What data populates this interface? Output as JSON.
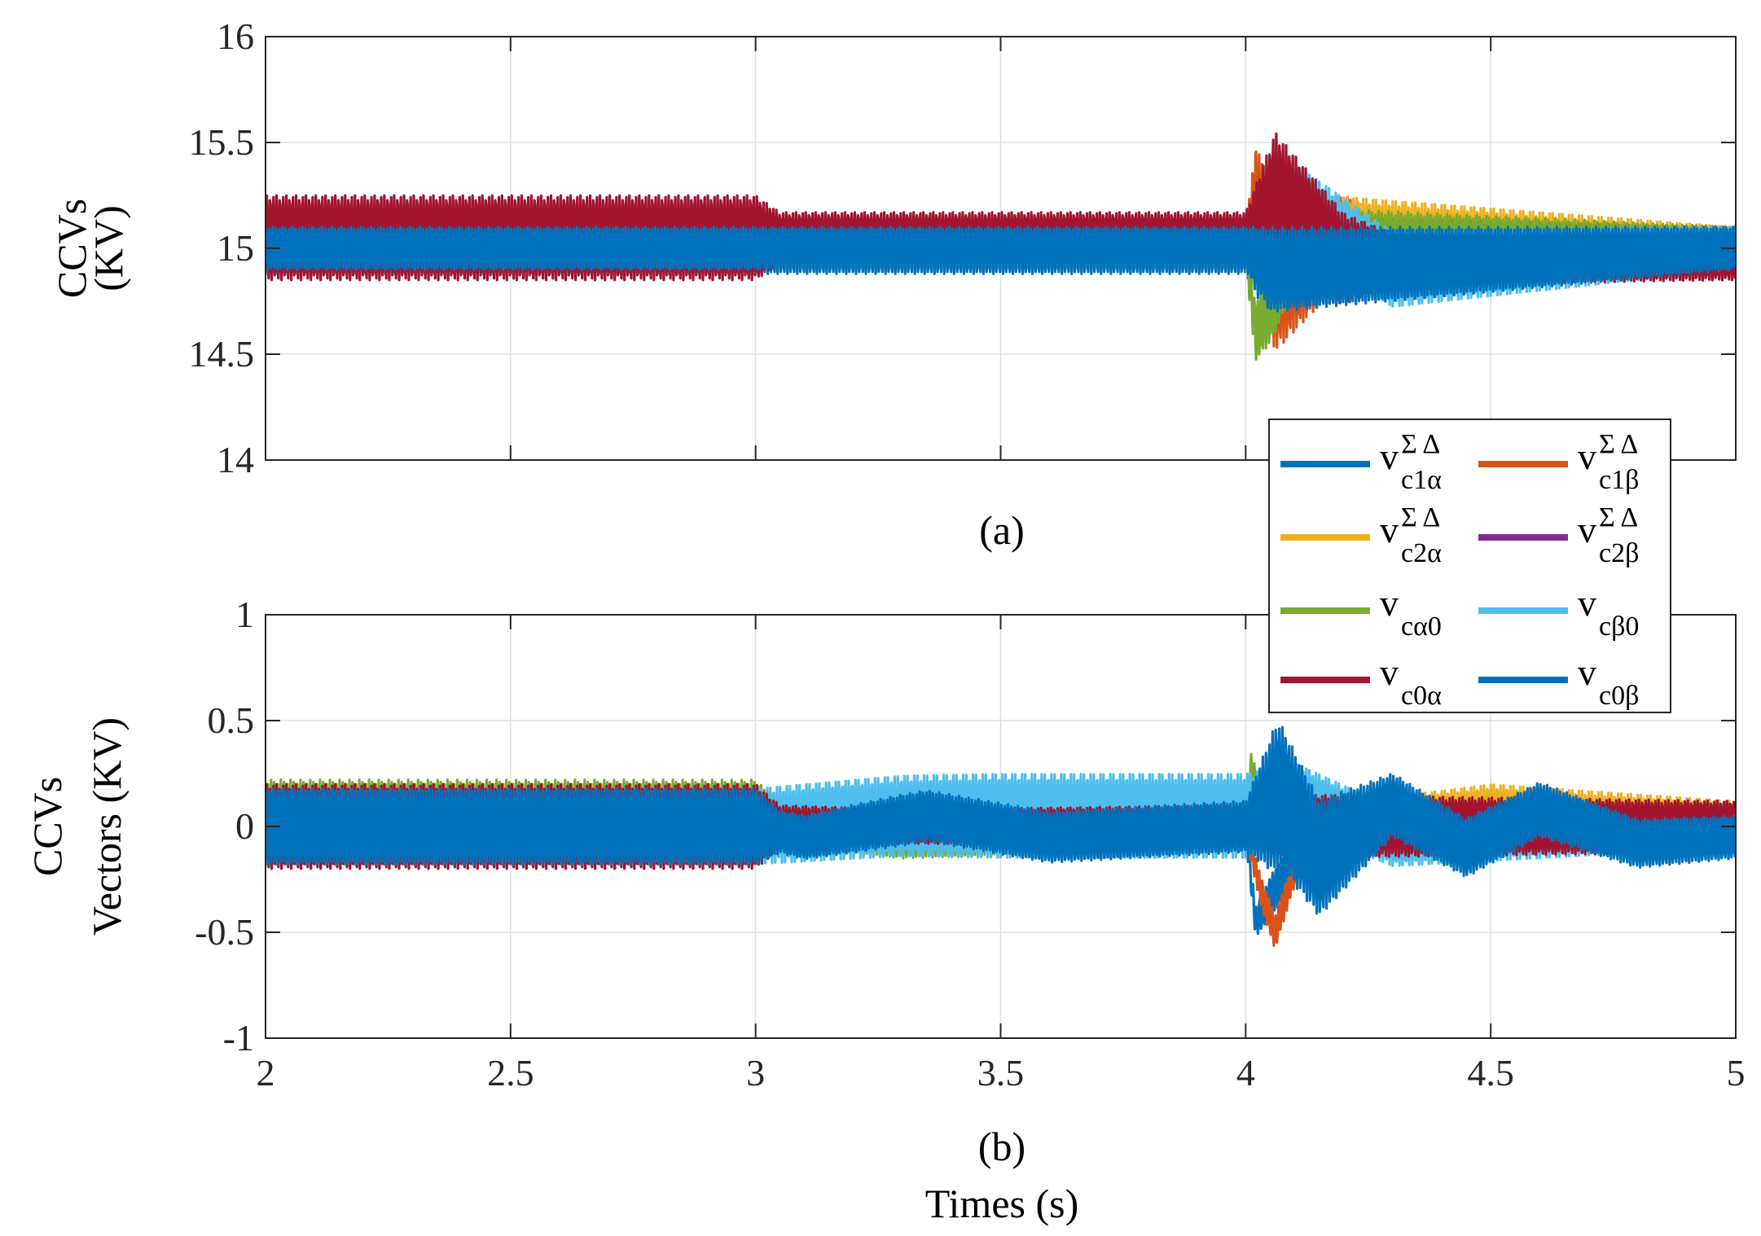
{
  "chart_data": [
    {
      "type": "line",
      "panel": "a",
      "caption": "(a)",
      "ylabel_lines": [
        "CCVs",
        "(KV)"
      ],
      "xlabel": "",
      "xlim": [
        2,
        5
      ],
      "ylim": [
        14,
        16
      ],
      "xticks": [
        2,
        2.5,
        3,
        3.5,
        4,
        4.5,
        5
      ],
      "yticks": [
        14,
        14.5,
        15,
        15.5,
        16
      ],
      "ytick_labels": [
        "14",
        "14.5",
        "15",
        "15.5",
        "16"
      ],
      "grid": true,
      "series": [
        {
          "name": "vc1α ΣΔ",
          "color": "#0072BD",
          "center": [
            [
              2,
              15
            ],
            [
              3,
              15
            ],
            [
              4,
              15
            ],
            [
              4.05,
              14.95
            ],
            [
              5,
              15
            ]
          ],
          "amp": [
            [
              2,
              0.12
            ],
            [
              3,
              0.12
            ],
            [
              4,
              0.12
            ],
            [
              4.05,
              0.3
            ],
            [
              4.3,
              0.12
            ],
            [
              5,
              0.1
            ]
          ]
        },
        {
          "name": "vc1β ΣΔ",
          "color": "#D95319",
          "center": [
            [
              2,
              15
            ],
            [
              4,
              15
            ],
            [
              4.02,
              15.3
            ],
            [
              4.06,
              14.85
            ],
            [
              4.2,
              15.05
            ],
            [
              5,
              15
            ]
          ],
          "amp": [
            [
              2,
              0.08
            ],
            [
              3,
              0.08
            ],
            [
              4,
              0.08
            ],
            [
              4.05,
              0.35
            ],
            [
              4.3,
              0.1
            ],
            [
              5,
              0.1
            ]
          ]
        },
        {
          "name": "vc2α ΣΔ",
          "color": "#EDB120",
          "center": [
            [
              2,
              15
            ],
            [
              4,
              15
            ],
            [
              4.2,
              15.05
            ],
            [
              5,
              15
            ]
          ],
          "amp": [
            [
              2,
              0.08
            ],
            [
              4,
              0.08
            ],
            [
              4.15,
              0.2
            ],
            [
              5,
              0.1
            ]
          ]
        },
        {
          "name": "vc2β ΣΔ",
          "color": "#7E2F8E",
          "center": [
            [
              2,
              15
            ],
            [
              5,
              15
            ]
          ],
          "amp": [
            [
              2,
              0.08
            ],
            [
              4,
              0.08
            ],
            [
              4.15,
              0.15
            ],
            [
              5,
              0.1
            ]
          ]
        },
        {
          "name": "vcα0",
          "color": "#77AC30",
          "center": [
            [
              2,
              15
            ],
            [
              4,
              15
            ],
            [
              4.02,
              14.6
            ],
            [
              4.1,
              15
            ],
            [
              5,
              15
            ]
          ],
          "amp": [
            [
              2,
              0.08
            ],
            [
              4,
              0.08
            ],
            [
              4.05,
              0.2
            ],
            [
              5,
              0.1
            ]
          ]
        },
        {
          "name": "vcβ0",
          "color": "#4DBEEE",
          "center": [
            [
              2,
              15
            ],
            [
              4,
              15
            ],
            [
              4.1,
              15.2
            ],
            [
              4.3,
              14.9
            ],
            [
              5,
              15
            ]
          ],
          "amp": [
            [
              2,
              0.08
            ],
            [
              4,
              0.08
            ],
            [
              4.1,
              0.2
            ],
            [
              5,
              0.1
            ]
          ]
        },
        {
          "name": "vc0α",
          "color": "#A2142F",
          "center": [
            [
              2,
              15.05
            ],
            [
              3,
              15.05
            ],
            [
              3.05,
              15.05
            ],
            [
              4,
              15.05
            ],
            [
              4.06,
              15.2
            ],
            [
              4.2,
              14.95
            ],
            [
              5,
              14.95
            ]
          ],
          "amp": [
            [
              2,
              0.2
            ],
            [
              2.5,
              0.2
            ],
            [
              3,
              0.2
            ],
            [
              3.05,
              0.12
            ],
            [
              4,
              0.12
            ],
            [
              4.06,
              0.35
            ],
            [
              4.3,
              0.12
            ],
            [
              5,
              0.1
            ]
          ]
        },
        {
          "name": "vc0β",
          "color": "#0072BD",
          "center": [
            [
              2,
              15
            ],
            [
              4,
              15
            ],
            [
              4.05,
              14.9
            ],
            [
              5,
              15
            ]
          ],
          "amp": [
            [
              2,
              0.1
            ],
            [
              4,
              0.1
            ],
            [
              4.05,
              0.2
            ],
            [
              5,
              0.1
            ]
          ]
        }
      ]
    },
    {
      "type": "line",
      "panel": "b",
      "caption": "(b)",
      "ylabel_lines": [
        "CCVs",
        "Vectors (KV)"
      ],
      "xlabel": "Times (s)",
      "xlim": [
        2,
        5
      ],
      "ylim": [
        -1,
        1
      ],
      "xticks": [
        2,
        2.5,
        3,
        3.5,
        4,
        4.5,
        5
      ],
      "xtick_labels": [
        "2",
        "2.5",
        "3",
        "3.5",
        "4",
        "4.5",
        "5"
      ],
      "yticks": [
        -1,
        -0.5,
        0,
        0.5,
        1
      ],
      "ytick_labels": [
        "-1",
        "-0.5",
        "0",
        "0.5",
        "1"
      ],
      "grid": true,
      "series": [
        {
          "name": "vc1α ΣΔ",
          "color": "#0072BD",
          "center": [
            [
              2,
              0
            ],
            [
              4,
              0
            ],
            [
              4.02,
              -0.45
            ],
            [
              4.06,
              -0.3
            ],
            [
              4.15,
              0
            ],
            [
              5,
              0
            ]
          ],
          "amp": [
            [
              2,
              0.05
            ],
            [
              4,
              0.05
            ],
            [
              4.05,
              0.1
            ],
            [
              5,
              0.05
            ]
          ]
        },
        {
          "name": "vc1β ΣΔ",
          "color": "#D95319",
          "center": [
            [
              2,
              0
            ],
            [
              4,
              0
            ],
            [
              4.03,
              -0.3
            ],
            [
              4.06,
              -0.5
            ],
            [
              4.1,
              -0.2
            ],
            [
              4.2,
              0
            ],
            [
              5,
              0
            ]
          ],
          "amp": [
            [
              2,
              0.05
            ],
            [
              4,
              0.05
            ],
            [
              4.05,
              0.08
            ],
            [
              5,
              0.05
            ]
          ]
        },
        {
          "name": "vc2α ΣΔ",
          "color": "#EDB120",
          "center": [
            [
              2,
              0
            ],
            [
              4,
              0
            ],
            [
              4.5,
              0.05
            ],
            [
              5,
              0
            ]
          ],
          "amp": [
            [
              2,
              0.05
            ],
            [
              4,
              0.05
            ],
            [
              4.5,
              0.15
            ],
            [
              5,
              0.12
            ]
          ]
        },
        {
          "name": "vc2β ΣΔ",
          "color": "#7E2F8E",
          "center": [
            [
              2,
              0
            ],
            [
              5,
              0
            ]
          ],
          "amp": [
            [
              2,
              0.05
            ],
            [
              4,
              0.05
            ],
            [
              4.2,
              0.12
            ],
            [
              5,
              0.1
            ]
          ]
        },
        {
          "name": "vcα0",
          "color": "#77AC30",
          "center": [
            [
              2,
              0.02
            ],
            [
              3,
              0.02
            ],
            [
              3.3,
              -0.05
            ],
            [
              4,
              0
            ],
            [
              4.01,
              0.25
            ],
            [
              4.05,
              0
            ],
            [
              5,
              0
            ]
          ],
          "amp": [
            [
              2,
              0.2
            ],
            [
              3,
              0.2
            ],
            [
              3.05,
              0.1
            ],
            [
              5,
              0.1
            ]
          ]
        },
        {
          "name": "vcβ0",
          "color": "#4DBEEE",
          "center": [
            [
              2,
              0
            ],
            [
              3,
              0
            ],
            [
              3.3,
              0.05
            ],
            [
              4,
              0.05
            ],
            [
              4.1,
              0.15
            ],
            [
              4.3,
              -0.05
            ],
            [
              5,
              0
            ]
          ],
          "amp": [
            [
              2,
              0.18
            ],
            [
              3,
              0.18
            ],
            [
              3.5,
              0.2
            ],
            [
              4,
              0.2
            ],
            [
              4.1,
              0.15
            ],
            [
              5,
              0.1
            ]
          ]
        },
        {
          "name": "vc0α",
          "color": "#A2142F",
          "center": [
            [
              2,
              0
            ],
            [
              5,
              0
            ]
          ],
          "amp": [
            [
              2,
              0.2
            ],
            [
              3,
              0.2
            ],
            [
              3.05,
              0.1
            ],
            [
              3.3,
              0.08
            ],
            [
              4,
              0.1
            ],
            [
              4.1,
              0.15
            ],
            [
              5,
              0.12
            ]
          ]
        },
        {
          "name": "vc0β",
          "color": "#0072BD",
          "center": [
            [
              2,
              0
            ],
            [
              3,
              0
            ],
            [
              3.1,
              -0.05
            ],
            [
              3.35,
              0.05
            ],
            [
              3.6,
              -0.05
            ],
            [
              4,
              0
            ],
            [
              4.07,
              0.15
            ],
            [
              4.15,
              -0.15
            ],
            [
              4.3,
              0.1
            ],
            [
              4.45,
              -0.1
            ],
            [
              4.6,
              0.08
            ],
            [
              4.8,
              -0.08
            ],
            [
              5,
              -0.05
            ]
          ],
          "amp": [
            [
              2,
              0.18
            ],
            [
              3,
              0.18
            ],
            [
              3.05,
              0.1
            ],
            [
              3.3,
              0.12
            ],
            [
              4,
              0.12
            ],
            [
              4.06,
              0.35
            ],
            [
              4.3,
              0.15
            ],
            [
              5,
              0.1
            ]
          ]
        }
      ]
    }
  ],
  "legend": {
    "placement": "inside-right between panels",
    "entries": [
      {
        "base": "v",
        "sup": "Σ Δ",
        "sub": "c1α",
        "color": "#0072BD"
      },
      {
        "base": "v",
        "sup": "Σ Δ",
        "sub": "c1β",
        "color": "#D95319"
      },
      {
        "base": "v",
        "sup": "Σ Δ",
        "sub": "c2α",
        "color": "#EDB120"
      },
      {
        "base": "v",
        "sup": "Σ Δ",
        "sub": "c2β",
        "color": "#7E2F8E"
      },
      {
        "base": "v",
        "sup": "",
        "sub": "cα0",
        "color": "#77AC30"
      },
      {
        "base": "v",
        "sup": "",
        "sub": "cβ0",
        "color": "#4DBEEE"
      },
      {
        "base": "v",
        "sup": "",
        "sub": "c0α",
        "color": "#A2142F"
      },
      {
        "base": "v",
        "sup": "",
        "sub": "c0β",
        "color": "#0072BD"
      }
    ]
  }
}
